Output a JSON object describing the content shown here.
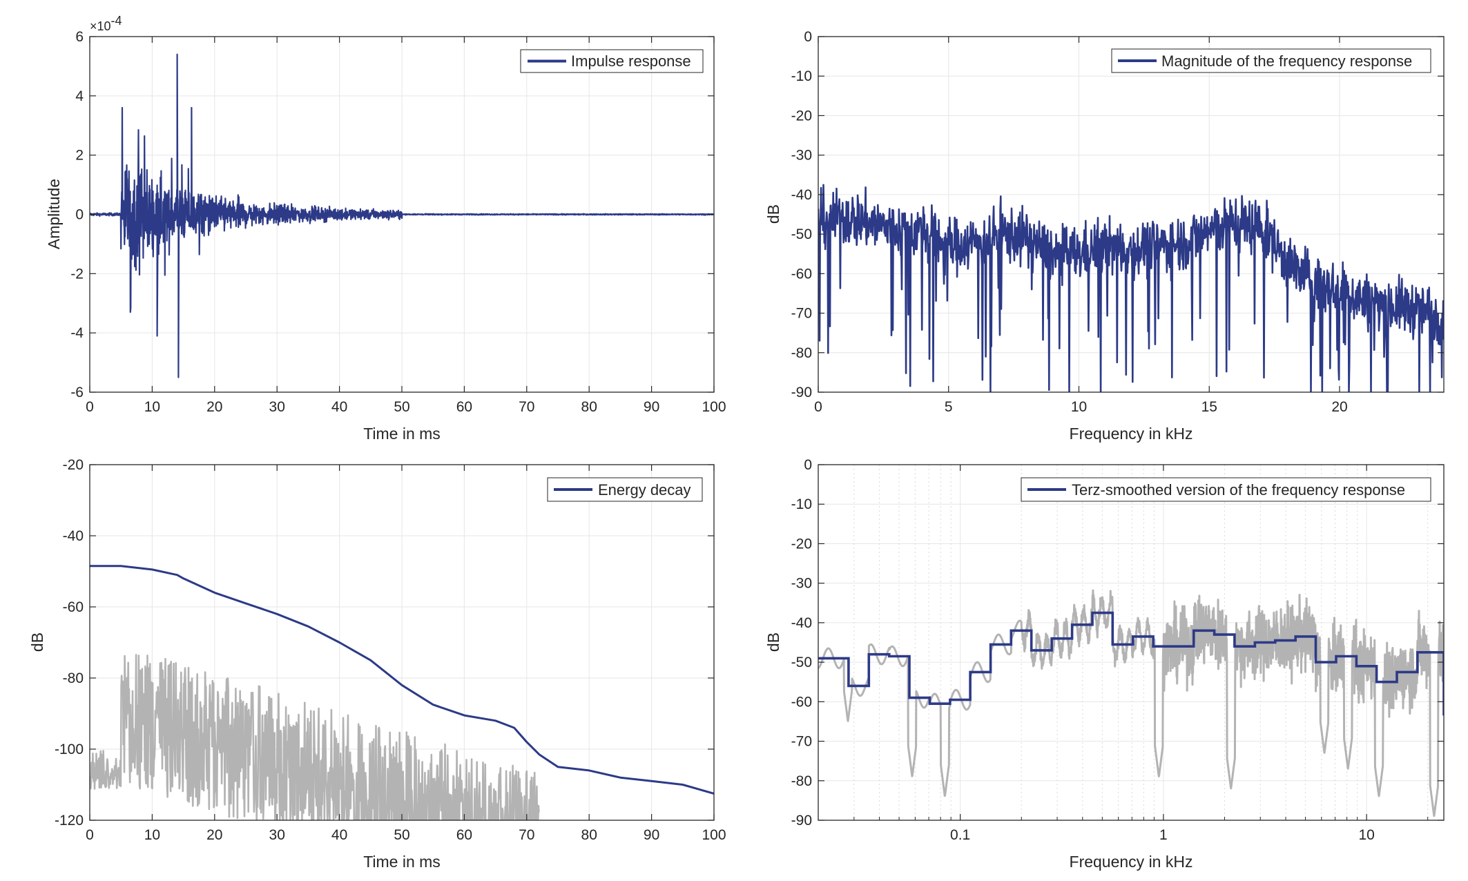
{
  "colors": {
    "series": "#2c3a87",
    "gray": "#b3b3b3",
    "grid": "#e6e6e6",
    "axis": "#262626"
  },
  "chart_data": [
    {
      "type": "line",
      "xlabel": "Time in ms",
      "ylabel": "Amplitude",
      "xlim": [
        0,
        100
      ],
      "ylim": [
        -6,
        6
      ],
      "xticks": [
        0,
        10,
        20,
        30,
        40,
        50,
        60,
        70,
        80,
        90,
        100
      ],
      "yticks": [
        -6,
        -4,
        -2,
        0,
        2,
        4,
        6
      ],
      "y_exponent_label": "×10",
      "y_exponent": "-4",
      "grid": true,
      "legend_position": "top-right",
      "series": [
        {
          "name": "Impulse response",
          "kind": "impulse",
          "onset_ms": 5,
          "decay_end_ms": 50,
          "peaks": [
            {
              "x": 5.2,
              "y": 3.6
            },
            {
              "x": 6.5,
              "y": -3.3
            },
            {
              "x": 10.8,
              "y": -4.1
            },
            {
              "x": 14.0,
              "y": 5.4
            },
            {
              "x": 14.2,
              "y": -5.5
            },
            {
              "x": 16.3,
              "y": 3.6
            }
          ]
        }
      ]
    },
    {
      "type": "line",
      "xlabel": "Frequency in kHz",
      "ylabel": "dB",
      "xlim": [
        0,
        24
      ],
      "ylim": [
        -90,
        0
      ],
      "xticks": [
        0,
        5,
        10,
        15,
        20
      ],
      "yticks": [
        0,
        -10,
        -20,
        -30,
        -40,
        -50,
        -60,
        -70,
        -80,
        -90
      ],
      "grid": true,
      "legend_position": "top-right",
      "series": [
        {
          "name": "Magnitude of the frequency response",
          "kind": "noisy-spectrum",
          "envelope": {
            "x": [
              0,
              1,
              2,
              3,
              4,
              5,
              6,
              7,
              8,
              9,
              10,
              11,
              12,
              13,
              14,
              15,
              16,
              17,
              18,
              19,
              20,
              21,
              22,
              23,
              24
            ],
            "y": [
              -46,
              -46,
              -47,
              -49,
              -49,
              -53,
              -52,
              -50,
              -51,
              -55,
              -55,
              -53,
              -54,
              -53,
              -52,
              -49,
              -47,
              -48,
              -57,
              -62,
              -64,
              -67,
              -68,
              -69,
              -71
            ]
          }
        }
      ]
    },
    {
      "type": "line",
      "xlabel": "Time in ms",
      "ylabel": "dB",
      "xlim": [
        0,
        100
      ],
      "ylim": [
        -120,
        -20
      ],
      "xticks": [
        0,
        10,
        20,
        30,
        40,
        50,
        60,
        70,
        80,
        90,
        100
      ],
      "yticks": [
        -20,
        -40,
        -60,
        -80,
        -100,
        -120
      ],
      "grid": true,
      "legend_position": "top-right",
      "series": [
        {
          "name": "Energy decay",
          "x": [
            0,
            5,
            10,
            14,
            15,
            20,
            25,
            30,
            35,
            40,
            45,
            50,
            55,
            60,
            65,
            68,
            70,
            72,
            75,
            80,
            85,
            90,
            95,
            100
          ],
          "y": [
            -48.5,
            -48.5,
            -49.5,
            -51,
            -52,
            -56,
            -59,
            -62,
            -65.5,
            -70,
            -75,
            -82,
            -87.5,
            -90.5,
            -92,
            -94,
            -98,
            -101.5,
            -105,
            -106,
            -108,
            -109,
            -110,
            -112.5
          ]
        },
        {
          "kind": "gray-energy",
          "color": "#b3b3b3",
          "pre_onset_level": -106,
          "onset_ms": 5,
          "peak_level": -70,
          "end_ms": 72
        }
      ]
    },
    {
      "type": "line",
      "xlabel": "Frequency in kHz",
      "ylabel": "dB",
      "xscale": "log",
      "xlim": [
        0.02,
        24
      ],
      "ylim": [
        -90,
        0
      ],
      "xticks": [
        0.1,
        1,
        10
      ],
      "xticklabels": [
        "0.1",
        "1",
        "10"
      ],
      "yticks": [
        0,
        -10,
        -20,
        -30,
        -40,
        -50,
        -60,
        -70,
        -80,
        -90
      ],
      "grid": true,
      "legend_position": "top-right",
      "series": [
        {
          "name": "Terz-smoothed version of the frequency response",
          "kind": "step",
          "edges": [
            0.02,
            0.0224,
            0.0282,
            0.0355,
            0.0447,
            0.0562,
            0.0708,
            0.0891,
            0.112,
            0.141,
            0.178,
            0.224,
            0.282,
            0.355,
            0.447,
            0.562,
            0.708,
            0.891,
            1.12,
            1.41,
            1.78,
            2.24,
            2.82,
            3.55,
            4.47,
            5.62,
            7.08,
            8.91,
            11.2,
            14.1,
            17.8,
            24
          ],
          "values": [
            -49,
            -49,
            -56,
            -48,
            -48.5,
            -59,
            -60.5,
            -59.5,
            -52.5,
            -45.5,
            -42,
            -47,
            -44,
            -40.5,
            -37.5,
            -45.5,
            -43.5,
            -46,
            -46,
            -42,
            -43,
            -46,
            -45,
            -44.5,
            -43.5,
            -50,
            -48.5,
            -51,
            -55,
            -52.5,
            -47.5,
            -63.5
          ]
        },
        {
          "kind": "gray-spectrum",
          "color": "#b3b3b3",
          "dips": [
            {
              "f": 0.028,
              "y": -65
            },
            {
              "f": 0.058,
              "y": -79
            },
            {
              "f": 0.084,
              "y": -84
            },
            {
              "f": 0.95,
              "y": -79
            },
            {
              "f": 2.15,
              "y": -82
            },
            {
              "f": 6.2,
              "y": -73
            },
            {
              "f": 8.1,
              "y": -77
            },
            {
              "f": 11.5,
              "y": -84
            },
            {
              "f": 21.5,
              "y": -89
            }
          ]
        }
      ]
    }
  ]
}
